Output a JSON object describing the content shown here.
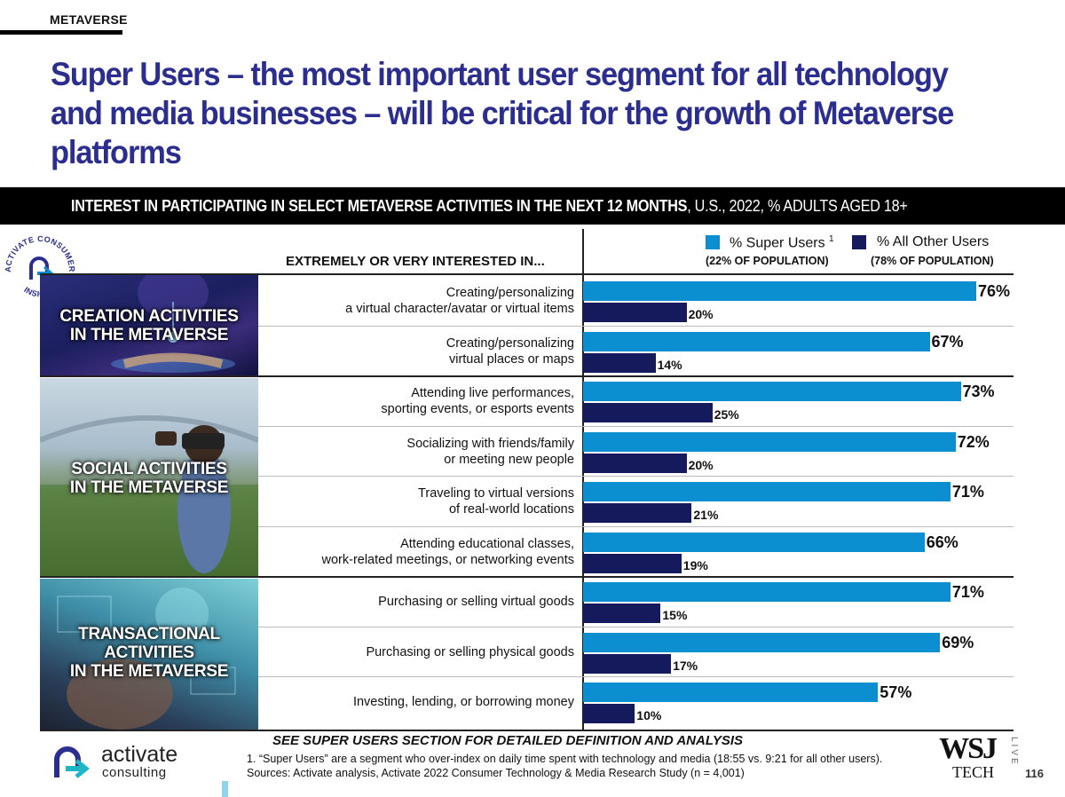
{
  "header": {
    "section_tag": "METAVERSE",
    "title": "Super Users – the most important user segment for all technology and media businesses – will be critical for the growth of Metaverse platforms",
    "banner_bold": "INTEREST IN PARTICIPATING IN SELECT METAVERSE ACTIVITIES IN THE NEXT 12 MONTHS",
    "banner_rest": ", U.S., 2022, % ADULTS AGED 18+"
  },
  "badge": {
    "top_text": "ACTIVATE CONSUMER",
    "bottom_text": "INSIGHT"
  },
  "column_header": "EXTREMELY OR VERY INTERESTED IN...",
  "legend": {
    "super_label": "% Super Users",
    "super_sup": "1",
    "super_sub": "(22% OF POPULATION)",
    "other_label": "% All Other Users",
    "other_sub": "(78% OF POPULATION)"
  },
  "groups": [
    {
      "label_line1": "CREATION ACTIVITIES",
      "label_line2": "IN THE METAVERSE",
      "label_line3": ""
    },
    {
      "label_line1": "SOCIAL ACTIVITIES",
      "label_line2": "IN THE METAVERSE",
      "label_line3": ""
    },
    {
      "label_line1": "TRANSACTIONAL",
      "label_line2": "ACTIVITIES",
      "label_line3": "IN THE METAVERSE"
    }
  ],
  "chart_data": {
    "type": "bar",
    "orientation": "horizontal",
    "title": "INTEREST IN PARTICIPATING IN SELECT METAVERSE ACTIVITIES IN THE NEXT 12 MONTHS, U.S., 2022, % ADULTS AGED 18+",
    "categories": [
      [
        "Creating/personalizing",
        "a virtual character/avatar or virtual items"
      ],
      [
        "Creating/personalizing",
        "virtual places or maps"
      ],
      [
        "Attending live performances,",
        "sporting events, or esports events"
      ],
      [
        "Socializing with friends/family",
        "or meeting new people"
      ],
      [
        "Traveling to virtual versions",
        "of real-world locations"
      ],
      [
        "Attending educational classes,",
        "work-related meetings, or networking events"
      ],
      [
        "Purchasing or selling virtual goods"
      ],
      [
        "Purchasing or selling physical goods"
      ],
      [
        "Investing, lending, or borrowing money"
      ]
    ],
    "series": [
      {
        "name": "% Super Users",
        "color": "#0b8fd1",
        "values": [
          76,
          67,
          73,
          72,
          71,
          66,
          71,
          69,
          57
        ]
      },
      {
        "name": "% All Other Users",
        "color": "#141a5c",
        "values": [
          20,
          14,
          25,
          20,
          21,
          19,
          15,
          17,
          10
        ]
      }
    ],
    "value_suffix": "%",
    "xlim": [
      0,
      100
    ],
    "grid": false,
    "legend_position": "top-right"
  },
  "footer": {
    "see_note": "SEE SUPER USERS SECTION FOR DETAILED DEFINITION AND ANALYSIS",
    "note1": "1. “Super Users” are a segment who over-index on daily time spent with technology and media (18:55 vs. 9:21 for all other users).",
    "sources": "Sources: Activate analysis, Activate 2022 Consumer Technology & Media Research Study (n = 4,001)",
    "logo_name": "activate",
    "logo_sub": "consulting",
    "wsj": "WSJ",
    "wsj_tech": "TECH",
    "wsj_live": "LIVE",
    "page_number": "116"
  }
}
